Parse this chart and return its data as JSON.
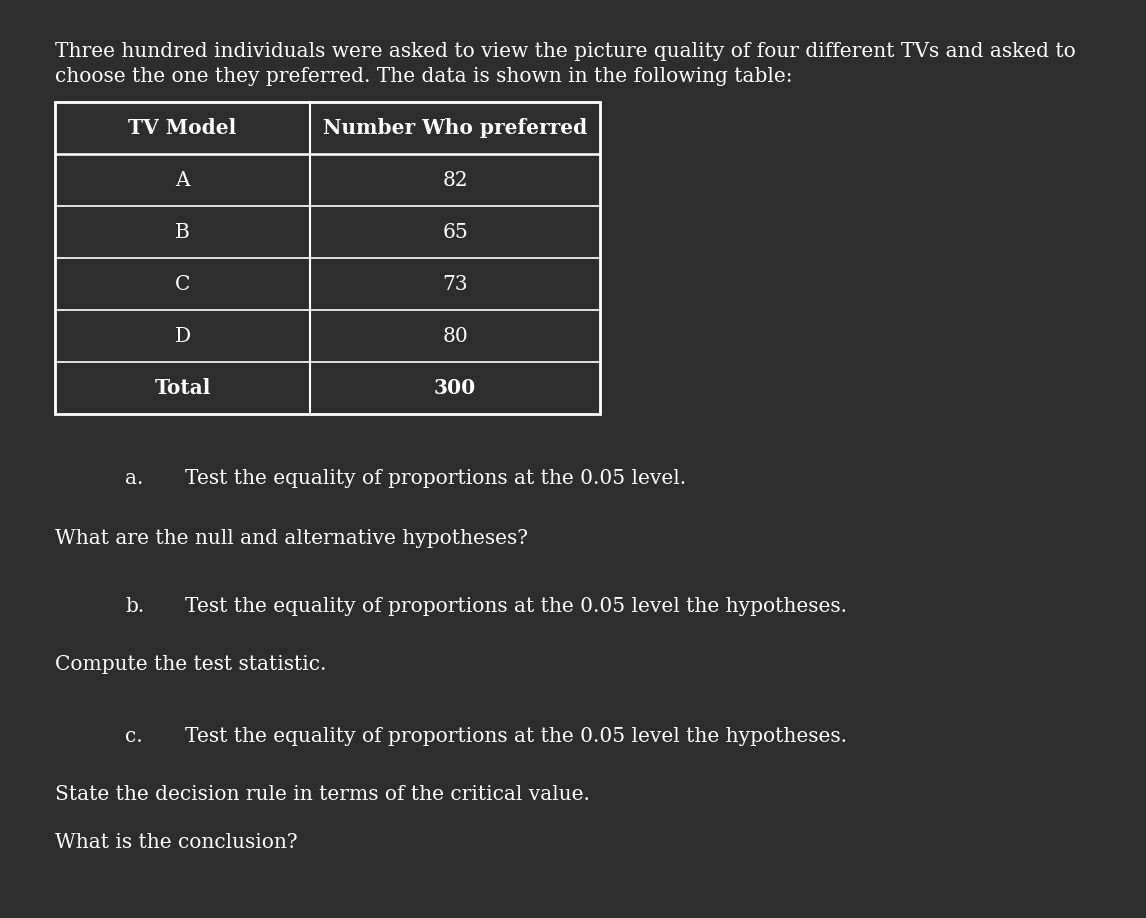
{
  "background_color": "#2d2d2d",
  "text_color": "#ffffff",
  "intro_line1": "Three hundred individuals were asked to view the picture quality of four different TVs and asked to",
  "intro_line2": "choose the one they preferred. The data is shown in the following table:",
  "table_headers": [
    "TV Model",
    "Number Who preferred"
  ],
  "table_rows": [
    [
      "A",
      "82"
    ],
    [
      "B",
      "65"
    ],
    [
      "C",
      "73"
    ],
    [
      "D",
      "80"
    ],
    [
      "Total",
      "300"
    ]
  ],
  "questions": [
    {
      "label": "a.",
      "text": "Test the equality of proportions at the 0.05 level.",
      "followup": "What are the null and alternative hypotheses?"
    },
    {
      "label": "b.",
      "text": "Test the equality of proportions at the 0.05 level the hypotheses.",
      "followup": "Compute the test statistic."
    },
    {
      "label": "c.",
      "text": "Test the equality of proportions at the 0.05 level the hypotheses.",
      "followup1": "State the decision rule in terms of the critical value.",
      "followup2": "What is the conclusion?"
    }
  ],
  "intro_fontsize": 14.5,
  "table_header_fontsize": 14.5,
  "table_body_fontsize": 14.5,
  "question_fontsize": 14.5,
  "followup_fontsize": 14.5
}
